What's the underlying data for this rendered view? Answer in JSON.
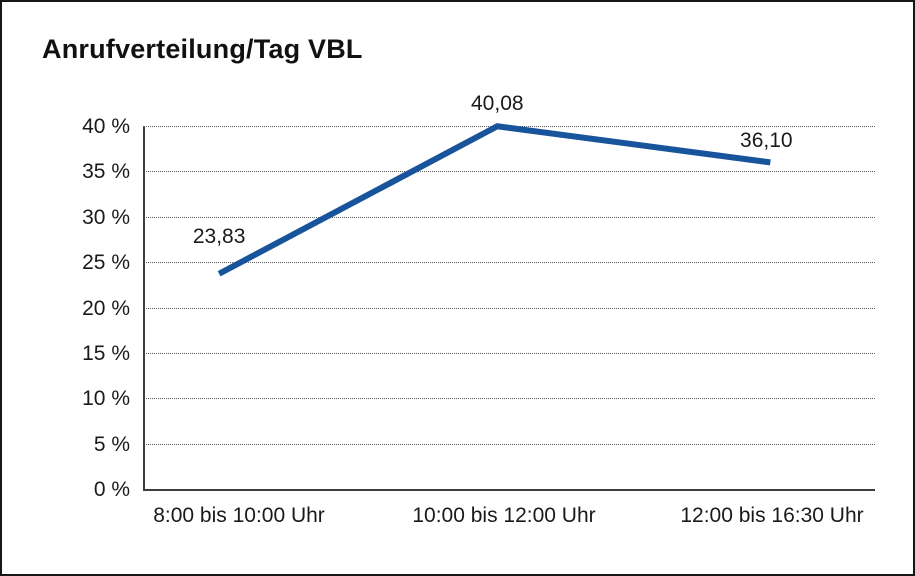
{
  "chart_data": {
    "type": "line",
    "title": "Anrufverteilung/Tag VBL",
    "categories": [
      "8:00 bis 10:00 Uhr",
      "10:00 bis 12:00 Uhr",
      "12:00 bis 16:30 Uhr"
    ],
    "series": [
      {
        "name": "Anrufverteilung/Tag VBL",
        "values": [
          23.83,
          40.08,
          36.1
        ],
        "color": "#17549b"
      }
    ],
    "data_labels": [
      "23,83",
      "40,08",
      "36,10"
    ],
    "y_ticks": [
      "0 %",
      "5 %",
      "10 %",
      "15 %",
      "20 %",
      "25 %",
      "30 %",
      "35 %",
      "40 %"
    ],
    "ylim": [
      0,
      40
    ],
    "y_tick_step": 5,
    "xlabel": "",
    "ylabel": "",
    "grid": "horizontal-dotted",
    "legend": "none",
    "line_width": 6,
    "text_color": "#1a1a1a",
    "axis_color": "#3d3d3d",
    "gridline_color": "#5a5a5a",
    "border_color": "#161616",
    "background_color": "#ffffff"
  }
}
